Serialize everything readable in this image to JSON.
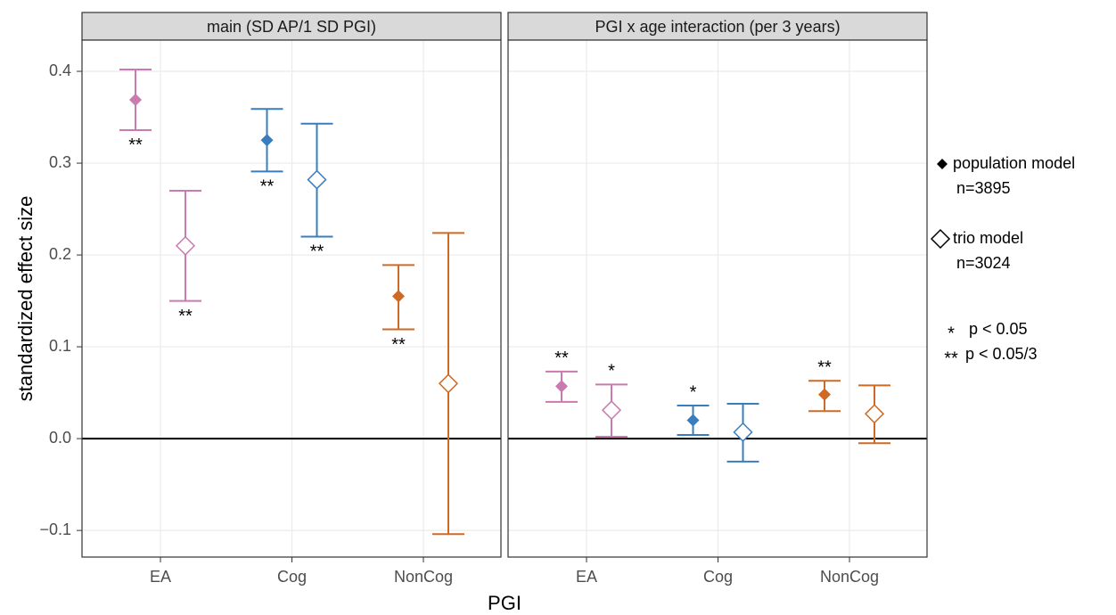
{
  "chart_data": {
    "type": "errorbar",
    "y_label": "standardized effect size",
    "x_label": "PGI",
    "ylim": [
      -0.129,
      0.434
    ],
    "yticks": [
      {
        "value": -0.1,
        "label": "−0.1"
      },
      {
        "value": 0,
        "label": "0.0"
      },
      0.1,
      0.2,
      0.3,
      0.4
    ],
    "grid": true,
    "reference_line": 0,
    "categories": [
      "EA",
      "Cog",
      "NonCog"
    ],
    "colors": [
      "#c97aaf",
      "#3a7dbf",
      "#cf6a24"
    ],
    "series": [
      {
        "name": "population model",
        "n_label": "n=3895",
        "marker": "filled"
      },
      {
        "name": "trio model",
        "n_label": "n=3024",
        "marker": "open"
      }
    ],
    "significance": [
      {
        "symbol": "*",
        "label": "p < 0.05"
      },
      {
        "symbol": "**",
        "label": "p < 0.05/3"
      }
    ],
    "panels": [
      {
        "title": "main (SD AP/1 SD PGI)",
        "series": [
          {
            "values": [
              0.369,
              0.325,
              0.155
            ],
            "lower": [
              0.336,
              0.291,
              0.119
            ],
            "upper": [
              0.402,
              0.359,
              0.189
            ],
            "sig": [
              "**",
              "**",
              "**"
            ]
          },
          {
            "values": [
              0.21,
              0.282,
              0.06
            ],
            "lower": [
              0.15,
              0.22,
              -0.104
            ],
            "upper": [
              0.27,
              0.343,
              0.224
            ],
            "sig": [
              "**",
              "**",
              null
            ]
          }
        ]
      },
      {
        "title": "PGI x age interaction (per 3 years)",
        "series": [
          {
            "values": [
              0.057,
              0.02,
              0.048
            ],
            "lower": [
              0.04,
              0.004,
              0.03
            ],
            "upper": [
              0.073,
              0.036,
              0.063
            ],
            "sig": [
              "**",
              "*",
              "**"
            ]
          },
          {
            "values": [
              0.031,
              0.007,
              0.027
            ],
            "lower": [
              0.002,
              -0.025,
              -0.005
            ],
            "upper": [
              0.059,
              0.038,
              0.058
            ],
            "sig": [
              "*",
              null,
              null
            ]
          }
        ]
      }
    ]
  }
}
